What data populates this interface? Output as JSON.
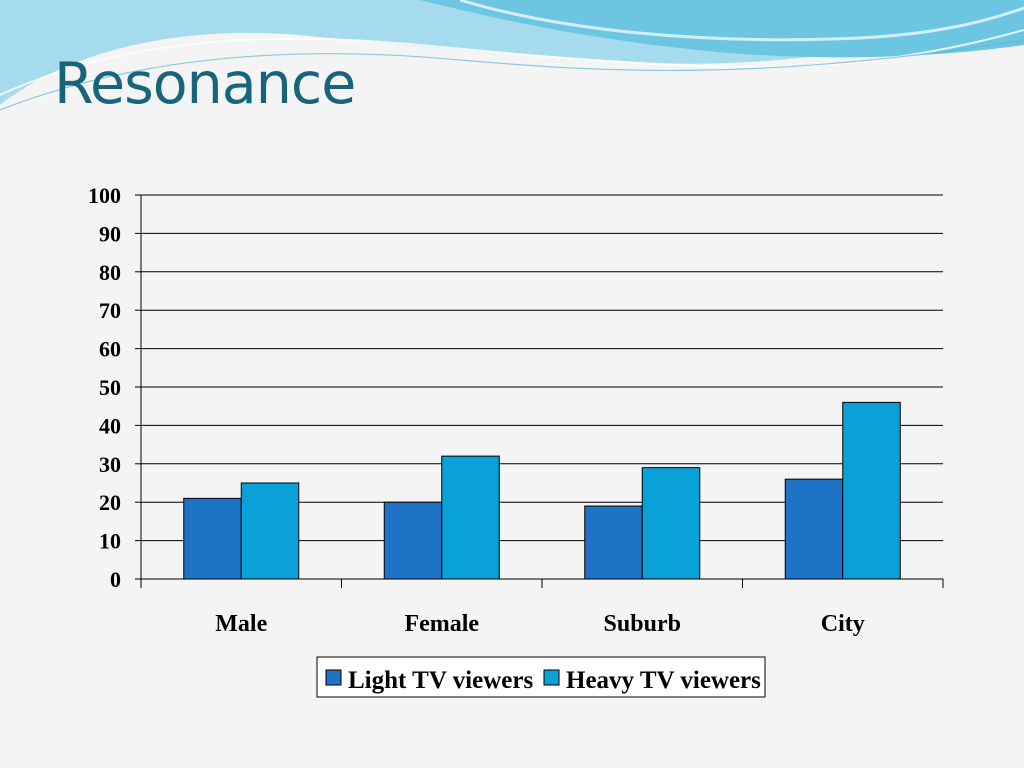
{
  "slide": {
    "title": "Resonance"
  },
  "colors": {
    "title": "#17657d",
    "banner": "#8fd0e6",
    "light_series": "#1f73c6",
    "heavy_series": "#0aa0d8"
  },
  "chart_data": {
    "type": "bar",
    "categories": [
      "Male",
      "Female",
      "Suburb",
      "City"
    ],
    "series": [
      {
        "name": "Light TV viewers",
        "values": [
          21,
          20,
          19,
          26
        ],
        "color": "#1f73c6"
      },
      {
        "name": "Heavy TV viewers",
        "values": [
          25,
          32,
          29,
          46
        ],
        "color": "#0aa0d8"
      }
    ],
    "yticks": [
      "0",
      "10",
      "20",
      "30",
      "40",
      "50",
      "60",
      "70",
      "80",
      "90",
      "100"
    ],
    "ylim": [
      0,
      100
    ],
    "grid": true,
    "legend": "bottom",
    "title": "",
    "xlabel": "",
    "ylabel": ""
  }
}
